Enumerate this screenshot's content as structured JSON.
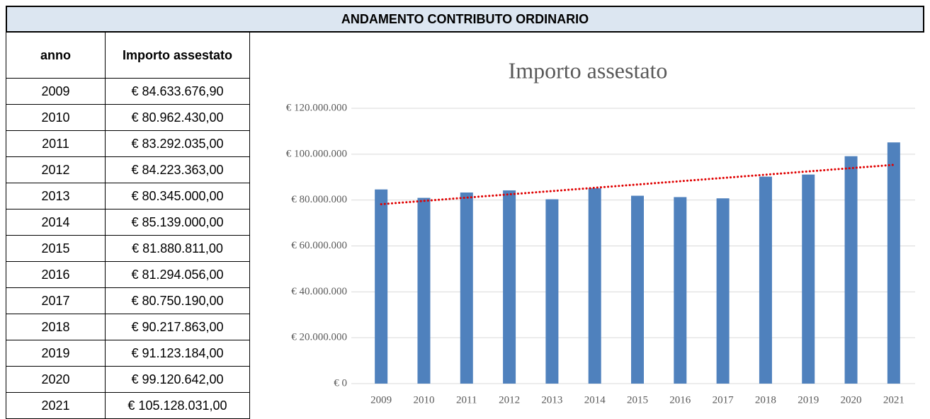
{
  "header": {
    "title": "ANDAMENTO CONTRIBUTO ORDINARIO"
  },
  "table": {
    "columns": [
      "anno",
      "Importo assestato"
    ],
    "rows": [
      [
        "2009",
        "€ 84.633.676,90"
      ],
      [
        "2010",
        "€ 80.962.430,00"
      ],
      [
        "2011",
        "€ 83.292.035,00"
      ],
      [
        "2012",
        "€ 84.223.363,00"
      ],
      [
        "2013",
        "€ 80.345.000,00"
      ],
      [
        "2014",
        "€ 85.139.000,00"
      ],
      [
        "2015",
        "€ 81.880.811,00"
      ],
      [
        "2016",
        "€ 81.294.056,00"
      ],
      [
        "2017",
        "€ 80.750.190,00"
      ],
      [
        "2018",
        "€ 90.217.863,00"
      ],
      [
        "2019",
        "€ 91.123.184,00"
      ],
      [
        "2020",
        "€ 99.120.642,00"
      ],
      [
        "2021",
        "€ 105.128.031,00"
      ]
    ]
  },
  "chart_data": {
    "type": "bar",
    "title": "Importo assestato",
    "categories": [
      "2009",
      "2010",
      "2011",
      "2012",
      "2013",
      "2014",
      "2015",
      "2016",
      "2017",
      "2018",
      "2019",
      "2020",
      "2021"
    ],
    "values": [
      84633676.9,
      80962430,
      83292035,
      84223363,
      80345000,
      85139000,
      81880811,
      81294056,
      80750190,
      90217863,
      91123184,
      99120642,
      105128031
    ],
    "color": "#4f81bd",
    "ylim": [
      0,
      120000000
    ],
    "yticks": [
      {
        "value": 0,
        "label": "€ 0"
      },
      {
        "value": 20000000,
        "label": "€ 20.000.000"
      },
      {
        "value": 40000000,
        "label": "€ 40.000.000"
      },
      {
        "value": 60000000,
        "label": "€ 60.000.000"
      },
      {
        "value": 80000000,
        "label": "€ 80.000.000"
      },
      {
        "value": 100000000,
        "label": "€ 100.000.000"
      },
      {
        "value": 120000000,
        "label": "€ 120.000.000"
      }
    ],
    "grid": true,
    "trendline": "linear",
    "trendline_color": "#e00000"
  }
}
